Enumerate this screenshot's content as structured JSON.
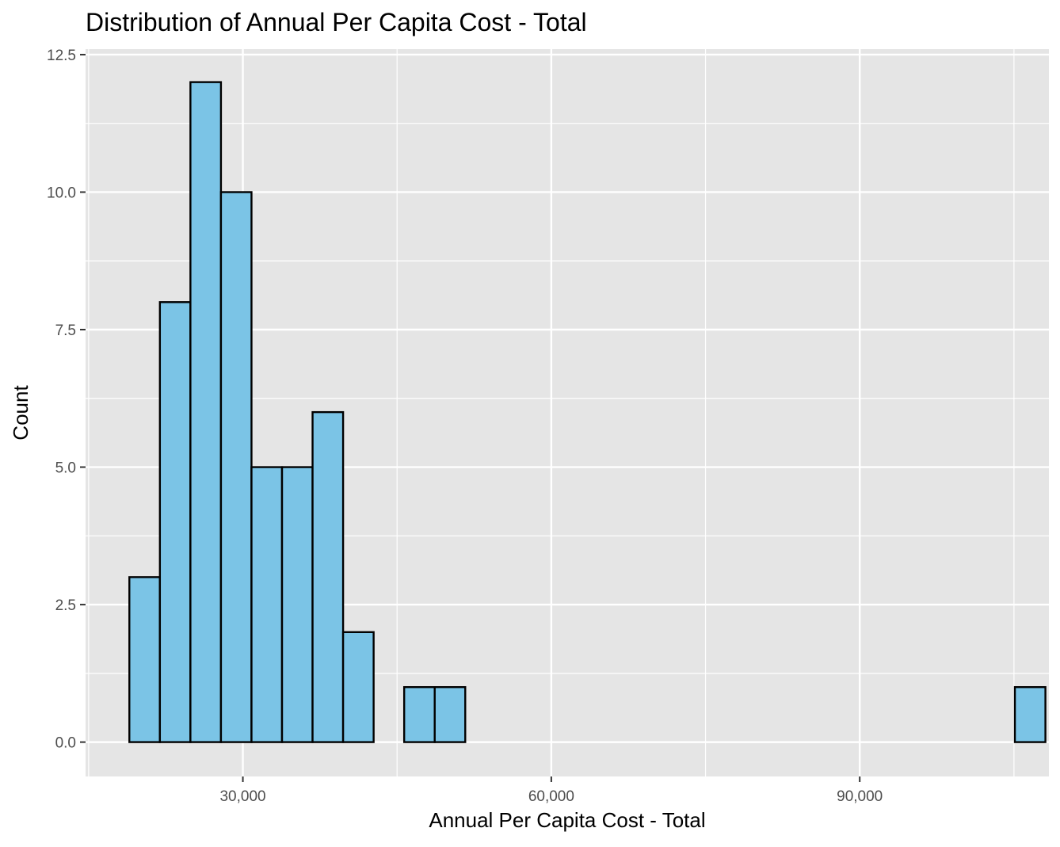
{
  "chart_data": {
    "type": "histogram",
    "title": "Distribution of Annual Per Capita Cost - Total",
    "xlabel": "Annual Per Capita Cost - Total",
    "ylabel": "Count",
    "xlim": [
      14700,
      108400
    ],
    "ylim": [
      -0.625,
      12.6
    ],
    "x_ticks": [
      {
        "value": 30000,
        "label": "30,000"
      },
      {
        "value": 60000,
        "label": "60,000"
      },
      {
        "value": 90000,
        "label": "90,000"
      }
    ],
    "y_ticks": [
      {
        "value": 0,
        "label": "0.0"
      },
      {
        "value": 2.5,
        "label": "2.5"
      },
      {
        "value": 5,
        "label": "5.0"
      },
      {
        "value": 7.5,
        "label": "7.5"
      },
      {
        "value": 10,
        "label": "10.0"
      },
      {
        "value": 12.5,
        "label": "12.5"
      }
    ],
    "bin_start": 18960,
    "bin_width": 2970,
    "counts": [
      3,
      8,
      12,
      10,
      5,
      5,
      6,
      2,
      0,
      1,
      1,
      0,
      0,
      0,
      0,
      0,
      0,
      0,
      0,
      0,
      0,
      0,
      0,
      0,
      0,
      0,
      0,
      0,
      0,
      1
    ],
    "bar_fill": "#7bc4e6",
    "bar_stroke": "#000000",
    "panel_background": "#e5e5e5",
    "grid": true,
    "grid_color": "#ffffff"
  }
}
